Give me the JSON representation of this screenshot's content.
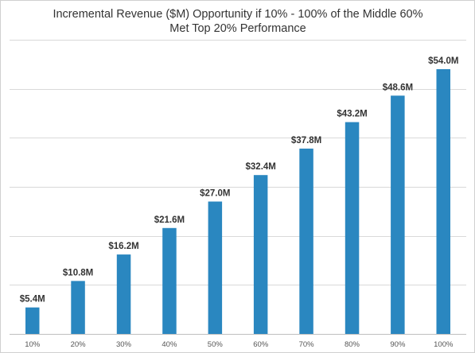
{
  "chart_data": {
    "type": "bar",
    "title_lines": [
      "Incremental Revenue ($M) Opportunity if 10% - 100% of the Middle 60%",
      "Met Top 20% Performance"
    ],
    "categories": [
      "10%",
      "20%",
      "30%",
      "40%",
      "50%",
      "60%",
      "70%",
      "80%",
      "90%",
      "100%"
    ],
    "values": [
      5.4,
      10.8,
      16.2,
      21.6,
      27.0,
      32.4,
      37.8,
      43.2,
      48.6,
      54.0
    ],
    "data_labels": [
      "$5.4M",
      "$10.8M",
      "$16.2M",
      "$21.6M",
      "$27.0M",
      "$32.4M",
      "$37.8M",
      "$43.2M",
      "$48.6M",
      "$54.0M"
    ],
    "xlabel": "",
    "ylabel": "",
    "ylim": [
      0,
      60
    ],
    "y_gridlines": [
      10,
      20,
      30,
      40,
      50,
      60
    ],
    "show_y_tick_labels": false,
    "grid": true,
    "legend": "none",
    "bar_color": "#2a87c0"
  }
}
